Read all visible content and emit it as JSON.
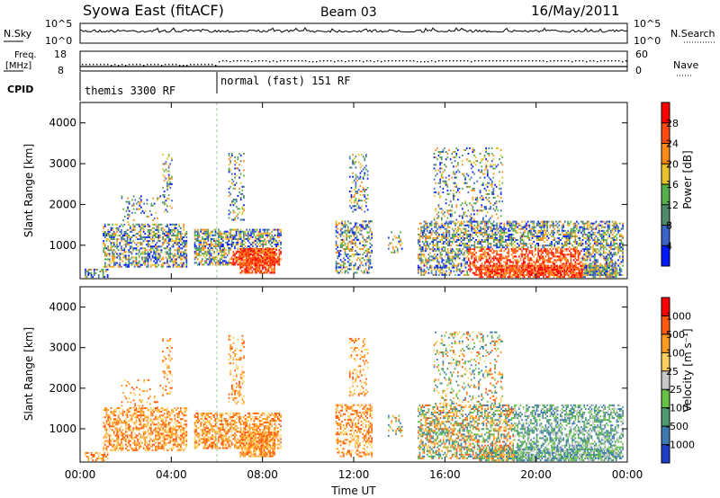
{
  "header": {
    "station": "Syowa East (fitACF)",
    "beam": "Beam 03",
    "date": "16/May/2011"
  },
  "status_panels": {
    "nsky": {
      "label": "N.Sky",
      "ticks": [
        "10^5",
        "10^0"
      ],
      "right_label": "N.Search",
      "right_ticks": [
        "10^5",
        "10^0"
      ]
    },
    "freq": {
      "label_line1": "Freq.",
      "label_line2": "[MHz]",
      "ticks": [
        "18",
        "8"
      ],
      "right_label": "Nave",
      "right_ticks": [
        "60",
        "0"
      ]
    },
    "cpid": {
      "label": "CPID",
      "modes": [
        {
          "label": "themis 3300 RF",
          "start_hour": 0
        },
        {
          "label": "normal (fast) 151 RF",
          "start_hour": 6
        }
      ]
    }
  },
  "chart_data": [
    {
      "type": "heatmap",
      "panel": "power",
      "ylabel": "Slant Range [km]",
      "ylim": [
        180,
        4500
      ],
      "yticks": [
        "1000",
        "2000",
        "3000",
        "4000"
      ],
      "xlim": [
        0,
        24
      ],
      "colorbar": {
        "label": "Power [dB]",
        "ticks": [
          "4",
          "8",
          "12",
          "16",
          "20",
          "24",
          "28"
        ],
        "colors": [
          "#0018ff",
          "#3a64c8",
          "#4f8a6a",
          "#55b04a",
          "#e8c22a",
          "#ff8a1a",
          "#ff4a10",
          "#ff0000"
        ]
      }
    },
    {
      "type": "heatmap",
      "panel": "velocity",
      "ylabel": "Slant Range [km]",
      "ylim": [
        180,
        4500
      ],
      "yticks": [
        "1000",
        "2000",
        "3000",
        "4000"
      ],
      "xlim": [
        0,
        24
      ],
      "colorbar": {
        "label": "Velocity [m s⁻¹]",
        "ticks": [
          "1000",
          "500",
          "100",
          "25",
          "-25",
          "-100",
          "-500",
          "-1000"
        ],
        "colors": [
          "#1e40c8",
          "#3c7ab0",
          "#4d9a70",
          "#66c244",
          "#c8c8c8",
          "#ffd060",
          "#ff9a20",
          "#ff5a10",
          "#ff0000"
        ]
      }
    }
  ],
  "xaxis": {
    "ticks": [
      "00:00",
      "04:00",
      "08:00",
      "12:00",
      "16:00",
      "20:00",
      "00:00"
    ],
    "label": "Time UT"
  }
}
